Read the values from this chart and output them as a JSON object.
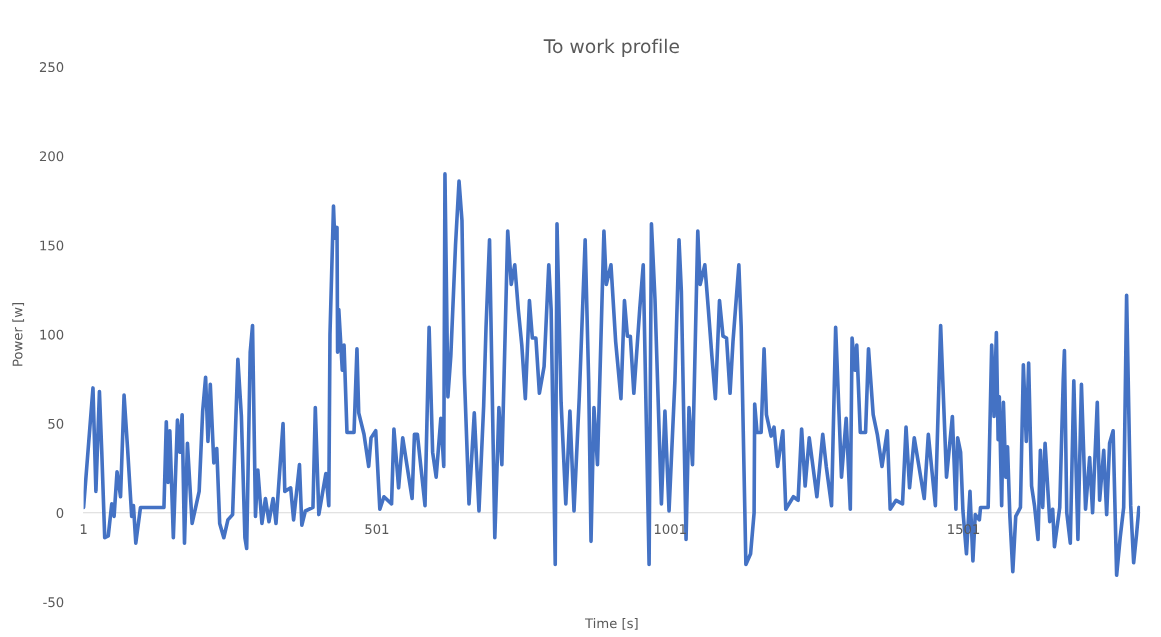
{
  "chart_data": {
    "type": "line",
    "title": "To work profile",
    "xlabel": "Time [s]",
    "ylabel": "Power [w]",
    "xlim": [
      1,
      1802
    ],
    "xticks": [
      1,
      501,
      1001,
      1501
    ],
    "ylim": [
      -50,
      250
    ],
    "yticks": [
      -50,
      0,
      50,
      100,
      150,
      200,
      250
    ],
    "grid": false,
    "marker": "none",
    "line_style": "solid",
    "series": [
      {
        "color": "#4472c4",
        "x": [
          1,
          17,
          22,
          28,
          32,
          37,
          43,
          49,
          53,
          58,
          64,
          70,
          76,
          83,
          86,
          90,
          98,
          138,
          142,
          145,
          148,
          154,
          161,
          165,
          169,
          173,
          178,
          186,
          198,
          204,
          209,
          213,
          217,
          223,
          228,
          233,
          240,
          247,
          255,
          264,
          270,
          276,
          279,
          285,
          289,
          294,
          298,
          305,
          311,
          317,
          324,
          329,
          341,
          344,
          354,
          359,
          369,
          373,
          379,
          392,
          396,
          402,
          414,
          419,
          421,
          427,
          429,
          433,
          434,
          436,
          442,
          445,
          450,
          462,
          467,
          470,
          479,
          487,
          491,
          499,
          506,
          513,
          526,
          530,
          538,
          545,
          561,
          565,
          570,
          583,
          590,
          596,
          602,
          610,
          615,
          617,
          622,
          627,
          635,
          641,
          646,
          650,
          658,
          667,
          675,
          683,
          687,
          693,
          702,
          709,
          714,
          724,
          730,
          736,
          742,
          748,
          754,
          761,
          766,
          772,
          778,
          786,
          794,
          798,
          805,
          808,
          815,
          823,
          830,
          837,
          846,
          856,
          862,
          866,
          871,
          877,
          888,
          892,
          900,
          908,
          917,
          923,
          928,
          933,
          939,
          949,
          955,
          965,
          969,
          975,
          986,
          992,
          999,
          1009,
          1016,
          1020,
          1028,
          1033,
          1039,
          1048,
          1052,
          1060,
          1066,
          1072,
          1078,
          1085,
          1091,
          1097,
          1103,
          1108,
          1118,
          1122,
          1130,
          1138,
          1144,
          1145,
          1149,
          1156,
          1161,
          1165,
          1173,
          1178,
          1184,
          1193,
          1198,
          1211,
          1219,
          1225,
          1231,
          1238,
          1251,
          1261,
          1267,
          1276,
          1283,
          1293,
          1301,
          1308,
          1311,
          1316,
          1319,
          1325,
          1334,
          1339,
          1347,
          1354,
          1362,
          1371,
          1376,
          1386,
          1397,
          1403,
          1409,
          1417,
          1434,
          1441,
          1453,
          1462,
          1472,
          1482,
          1488,
          1491,
          1496,
          1500,
          1506,
          1512,
          1517,
          1521,
          1528,
          1530,
          1543,
          1549,
          1553,
          1557,
          1560,
          1562,
          1566,
          1569,
          1573,
          1576,
          1580,
          1585,
          1590,
          1598,
          1603,
          1608,
          1612,
          1617,
          1622,
          1628,
          1632,
          1636,
          1640,
          1648,
          1653,
          1656,
          1665,
          1671,
          1673,
          1677,
          1683,
          1689,
          1696,
          1702,
          1709,
          1716,
          1721,
          1729,
          1733,
          1740,
          1745,
          1750,
          1756,
          1762,
          1768,
          1774,
          1779,
          1784,
          1786,
          1791,
          1796,
          1800
        ],
        "values": [
          3,
          70,
          12,
          68,
          34,
          -14,
          -13,
          5,
          -2,
          23,
          9,
          66,
          36,
          -2,
          4,
          -17,
          3,
          3,
          51,
          17,
          46,
          -14,
          52,
          34,
          55,
          -17,
          39,
          -6,
          12,
          57,
          76,
          40,
          72,
          28,
          36,
          -6,
          -14,
          -4,
          -1,
          86,
          54,
          -14,
          -20,
          90,
          105,
          -2,
          24,
          -6,
          8,
          -5,
          8,
          -6,
          50,
          12,
          14,
          -4,
          27,
          -7,
          1,
          3,
          59,
          -1,
          22,
          4,
          100,
          172,
          154,
          160,
          90,
          114,
          80,
          94,
          45,
          45,
          92,
          56,
          44,
          26,
          42,
          46,
          2,
          9,
          5,
          47,
          14,
          42,
          8,
          44,
          44,
          4,
          104,
          34,
          20,
          53,
          26,
          190,
          65,
          88,
          150,
          186,
          164,
          78,
          5,
          56,
          1,
          60,
          104,
          153,
          -14,
          59,
          27,
          158,
          128,
          139,
          114,
          94,
          64,
          119,
          98,
          98,
          67,
          82,
          139,
          114,
          -29,
          162,
          62,
          5,
          57,
          1,
          65,
          153,
          74,
          -16,
          59,
          27,
          158,
          128,
          139,
          96,
          64,
          119,
          99,
          99,
          67,
          114,
          139,
          -29,
          162,
          120,
          5,
          57,
          1,
          74,
          153,
          124,
          -15,
          59,
          27,
          158,
          128,
          139,
          114,
          88,
          64,
          119,
          99,
          98,
          67,
          96,
          139,
          104,
          -29,
          -23,
          0,
          61,
          45,
          45,
          92,
          55,
          43,
          48,
          26,
          46,
          2,
          9,
          7,
          47,
          15,
          42,
          9,
          44,
          26,
          4,
          104,
          20,
          53,
          2,
          98,
          80,
          94,
          45,
          45,
          92,
          55,
          44,
          26,
          46,
          2,
          7,
          5,
          48,
          14,
          42,
          8,
          44,
          4,
          105,
          20,
          54,
          2,
          42,
          34,
          1,
          -23,
          12,
          -27,
          -1,
          -4,
          3,
          3,
          94,
          54,
          101,
          41,
          65,
          4,
          62,
          20,
          37,
          -2,
          -33,
          -2,
          3,
          83,
          40,
          84,
          15,
          4,
          -15,
          35,
          3,
          39,
          -5,
          2,
          -19,
          3,
          75,
          91,
          0,
          -17,
          74,
          -15,
          72,
          2,
          31,
          0,
          62,
          7,
          35,
          -1,
          39,
          46,
          -35,
          -14,
          3,
          122,
          35,
          4,
          -28,
          -12,
          3
        ]
      }
    ]
  }
}
